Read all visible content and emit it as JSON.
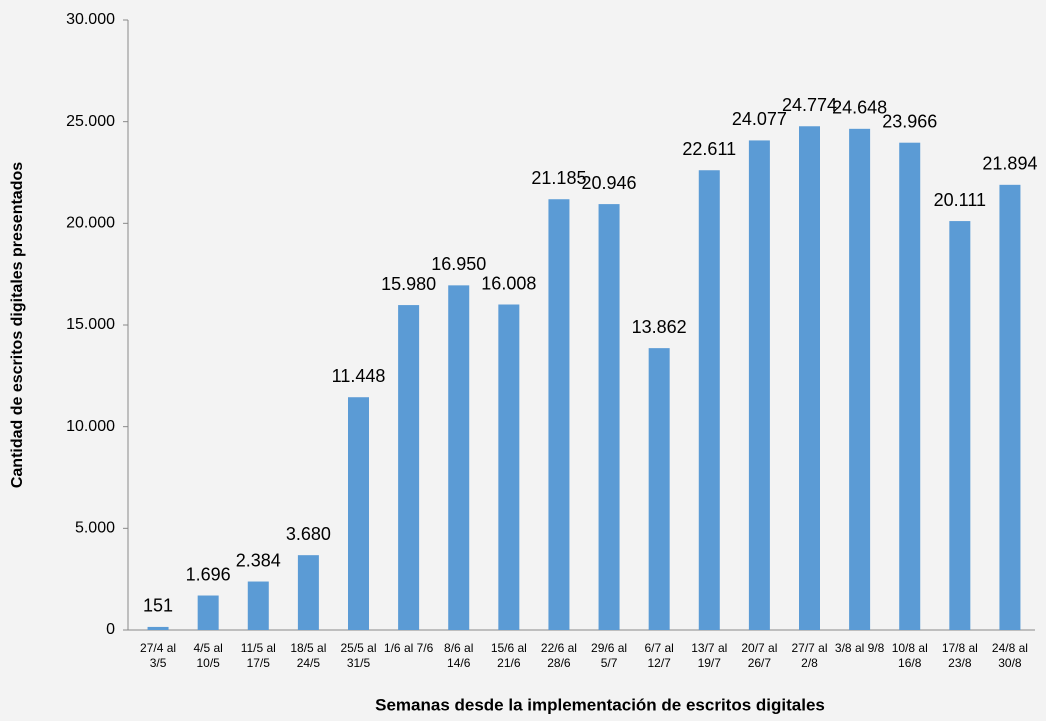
{
  "chart_data": {
    "type": "bar",
    "x_label": "Semanas desde la implementación de escritos digitales",
    "y_label": "Cantidad de escritos digitales presentados",
    "categories": [
      "27/4 al 3/5",
      "4/5 al 10/5",
      "11/5 al 17/5",
      "18/5 al 24/5",
      "25/5 al 31/5",
      "1/6 al 7/6",
      "8/6 al 14/6",
      "15/6 al 21/6",
      "22/6 al 28/6",
      "29/6 al 5/7",
      "6/7 al 12/7",
      "13/7 al 19/7",
      "20/7 al 26/7",
      "27/7 al 2/8",
      "3/8 al 9/8",
      "10/8 al 16/8",
      "17/8 al 23/8",
      "24/8 al 30/8"
    ],
    "values": [
      151,
      1696,
      2384,
      3680,
      11448,
      15980,
      16950,
      16008,
      21185,
      20946,
      13862,
      22611,
      24077,
      24774,
      24648,
      23966,
      20111,
      21894
    ],
    "value_labels": [
      "151",
      "1.696",
      "2.384",
      "3.680",
      "11.448",
      "15.980",
      "16.950",
      "16.008",
      "21.185",
      "20.946",
      "13.862",
      "22.611",
      "24.077",
      "24.774",
      "24.648",
      "23.966",
      "20.111",
      "21.894"
    ],
    "color": "#5b9bd5",
    "ylim": [
      0,
      30000
    ],
    "yticks": [
      0,
      {
        "value": 5000,
        "label": "5.000"
      },
      {
        "value": 10000,
        "label": "10.000"
      },
      {
        "value": 15000,
        "label": "15.000"
      },
      {
        "value": 20000,
        "label": "20.000"
      },
      {
        "value": 25000,
        "label": "25.000"
      },
      {
        "value": 30000,
        "label": "30.000"
      }
    ],
    "grid": false
  }
}
